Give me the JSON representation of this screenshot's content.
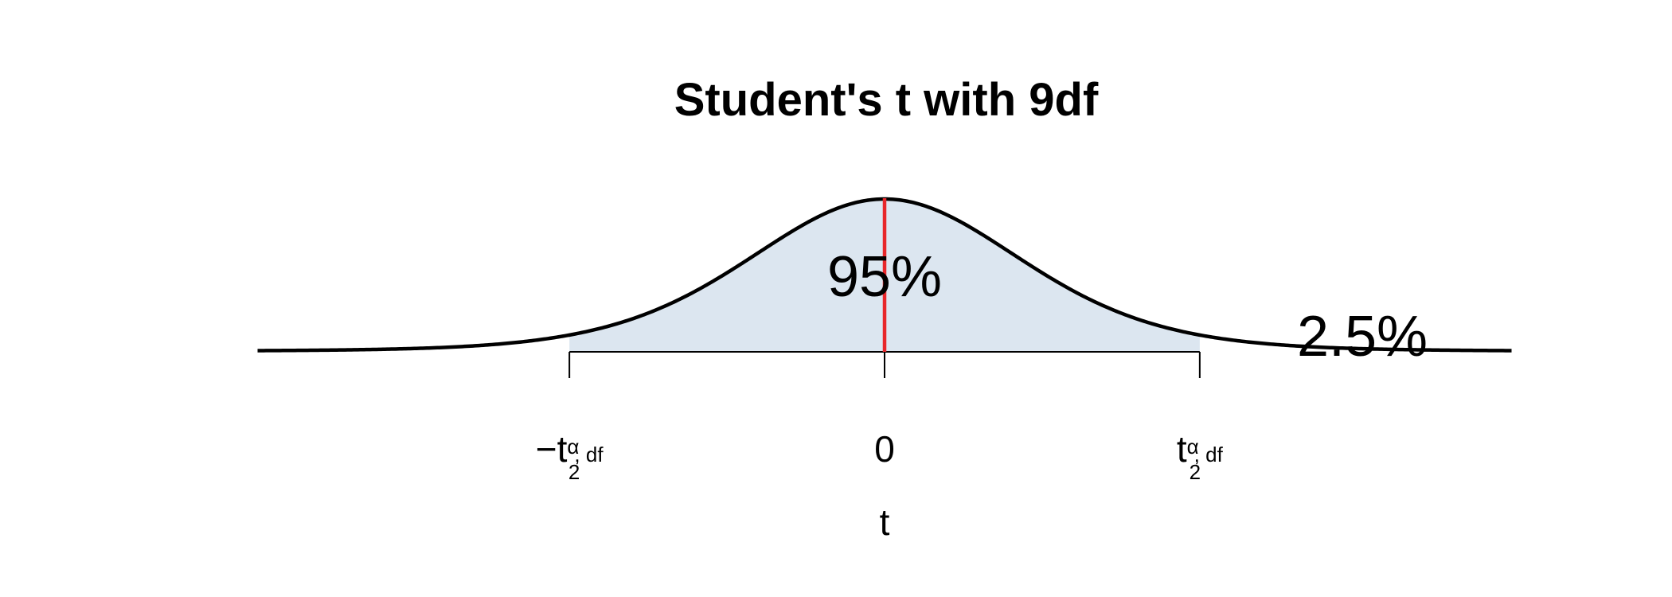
{
  "chart_data": {
    "type": "area",
    "title": "Student's t with 9df",
    "distribution": "student-t",
    "df": 9,
    "confidence": 0.95,
    "alpha": 0.05,
    "t_critical": 2.262,
    "xlim": [
      -4.5,
      4.5
    ],
    "xlabel": "t",
    "center_label": "95%",
    "tail_label": "2.5%",
    "ticks": [
      {
        "value": -2.262,
        "sign": "−",
        "main": "t",
        "sup": "α",
        "sub": "2",
        "rest": ", df"
      },
      {
        "value": 0,
        "text": "0"
      },
      {
        "value": 2.262,
        "main": "t",
        "sup": "α",
        "sub": "2",
        "rest": ", df"
      }
    ],
    "fill_color": "#dce6f0",
    "curve_color": "#000000",
    "center_line_color": "#e8262a"
  }
}
